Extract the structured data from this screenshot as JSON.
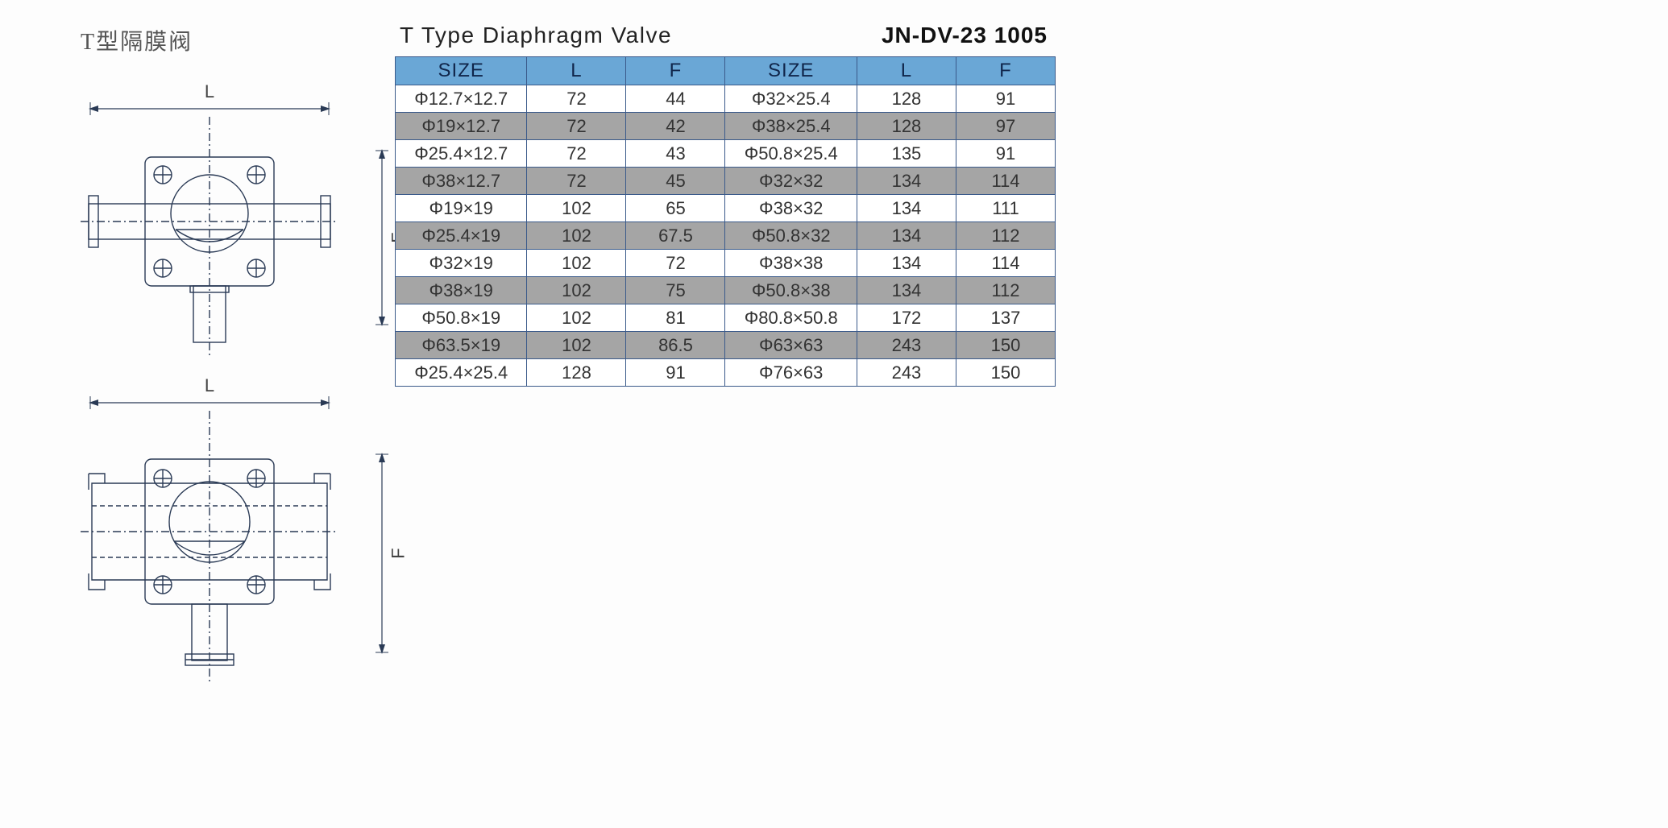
{
  "titles": {
    "cn": "T型隔膜阀",
    "en": "T Type Diaphragm Valve",
    "part_no": "JN-DV-23 1005"
  },
  "dimensions": {
    "L": "L",
    "F": "F"
  },
  "table": {
    "headers": [
      "SIZE",
      "L",
      "F",
      "SIZE",
      "L",
      "F"
    ],
    "header_bg": "#6aa7d6",
    "alt_bg": "#a5a5a5",
    "border_color": "#3a5a8a",
    "rows": [
      {
        "alt": false,
        "cells": [
          "Φ12.7×12.7",
          "72",
          "44",
          "Φ32×25.4",
          "128",
          "91"
        ]
      },
      {
        "alt": true,
        "cells": [
          "Φ19×12.7",
          "72",
          "42",
          "Φ38×25.4",
          "128",
          "97"
        ]
      },
      {
        "alt": false,
        "cells": [
          "Φ25.4×12.7",
          "72",
          "43",
          "Φ50.8×25.4",
          "135",
          "91"
        ]
      },
      {
        "alt": true,
        "cells": [
          "Φ38×12.7",
          "72",
          "45",
          "Φ32×32",
          "134",
          "114"
        ]
      },
      {
        "alt": false,
        "cells": [
          "Φ19×19",
          "102",
          "65",
          "Φ38×32",
          "134",
          "111"
        ]
      },
      {
        "alt": true,
        "cells": [
          "Φ25.4×19",
          "102",
          "67.5",
          "Φ50.8×32",
          "134",
          "112"
        ]
      },
      {
        "alt": false,
        "cells": [
          "Φ32×19",
          "102",
          "72",
          "Φ38×38",
          "134",
          "114"
        ]
      },
      {
        "alt": true,
        "cells": [
          "Φ38×19",
          "102",
          "75",
          "Φ50.8×38",
          "134",
          "112"
        ]
      },
      {
        "alt": false,
        "cells": [
          "Φ50.8×19",
          "102",
          "81",
          "Φ80.8×50.8",
          "172",
          "137"
        ]
      },
      {
        "alt": true,
        "cells": [
          "Φ63.5×19",
          "102",
          "86.5",
          "Φ63×63",
          "243",
          "150"
        ]
      },
      {
        "alt": false,
        "cells": [
          "Φ25.4×25.4",
          "128",
          "91",
          "Φ76×63",
          "243",
          "150"
        ]
      }
    ]
  },
  "drawing_style": {
    "stroke": "#2a3a55",
    "stroke_width": 1.4,
    "dash": "6,4",
    "dash_fine": "10,4,2,4"
  }
}
